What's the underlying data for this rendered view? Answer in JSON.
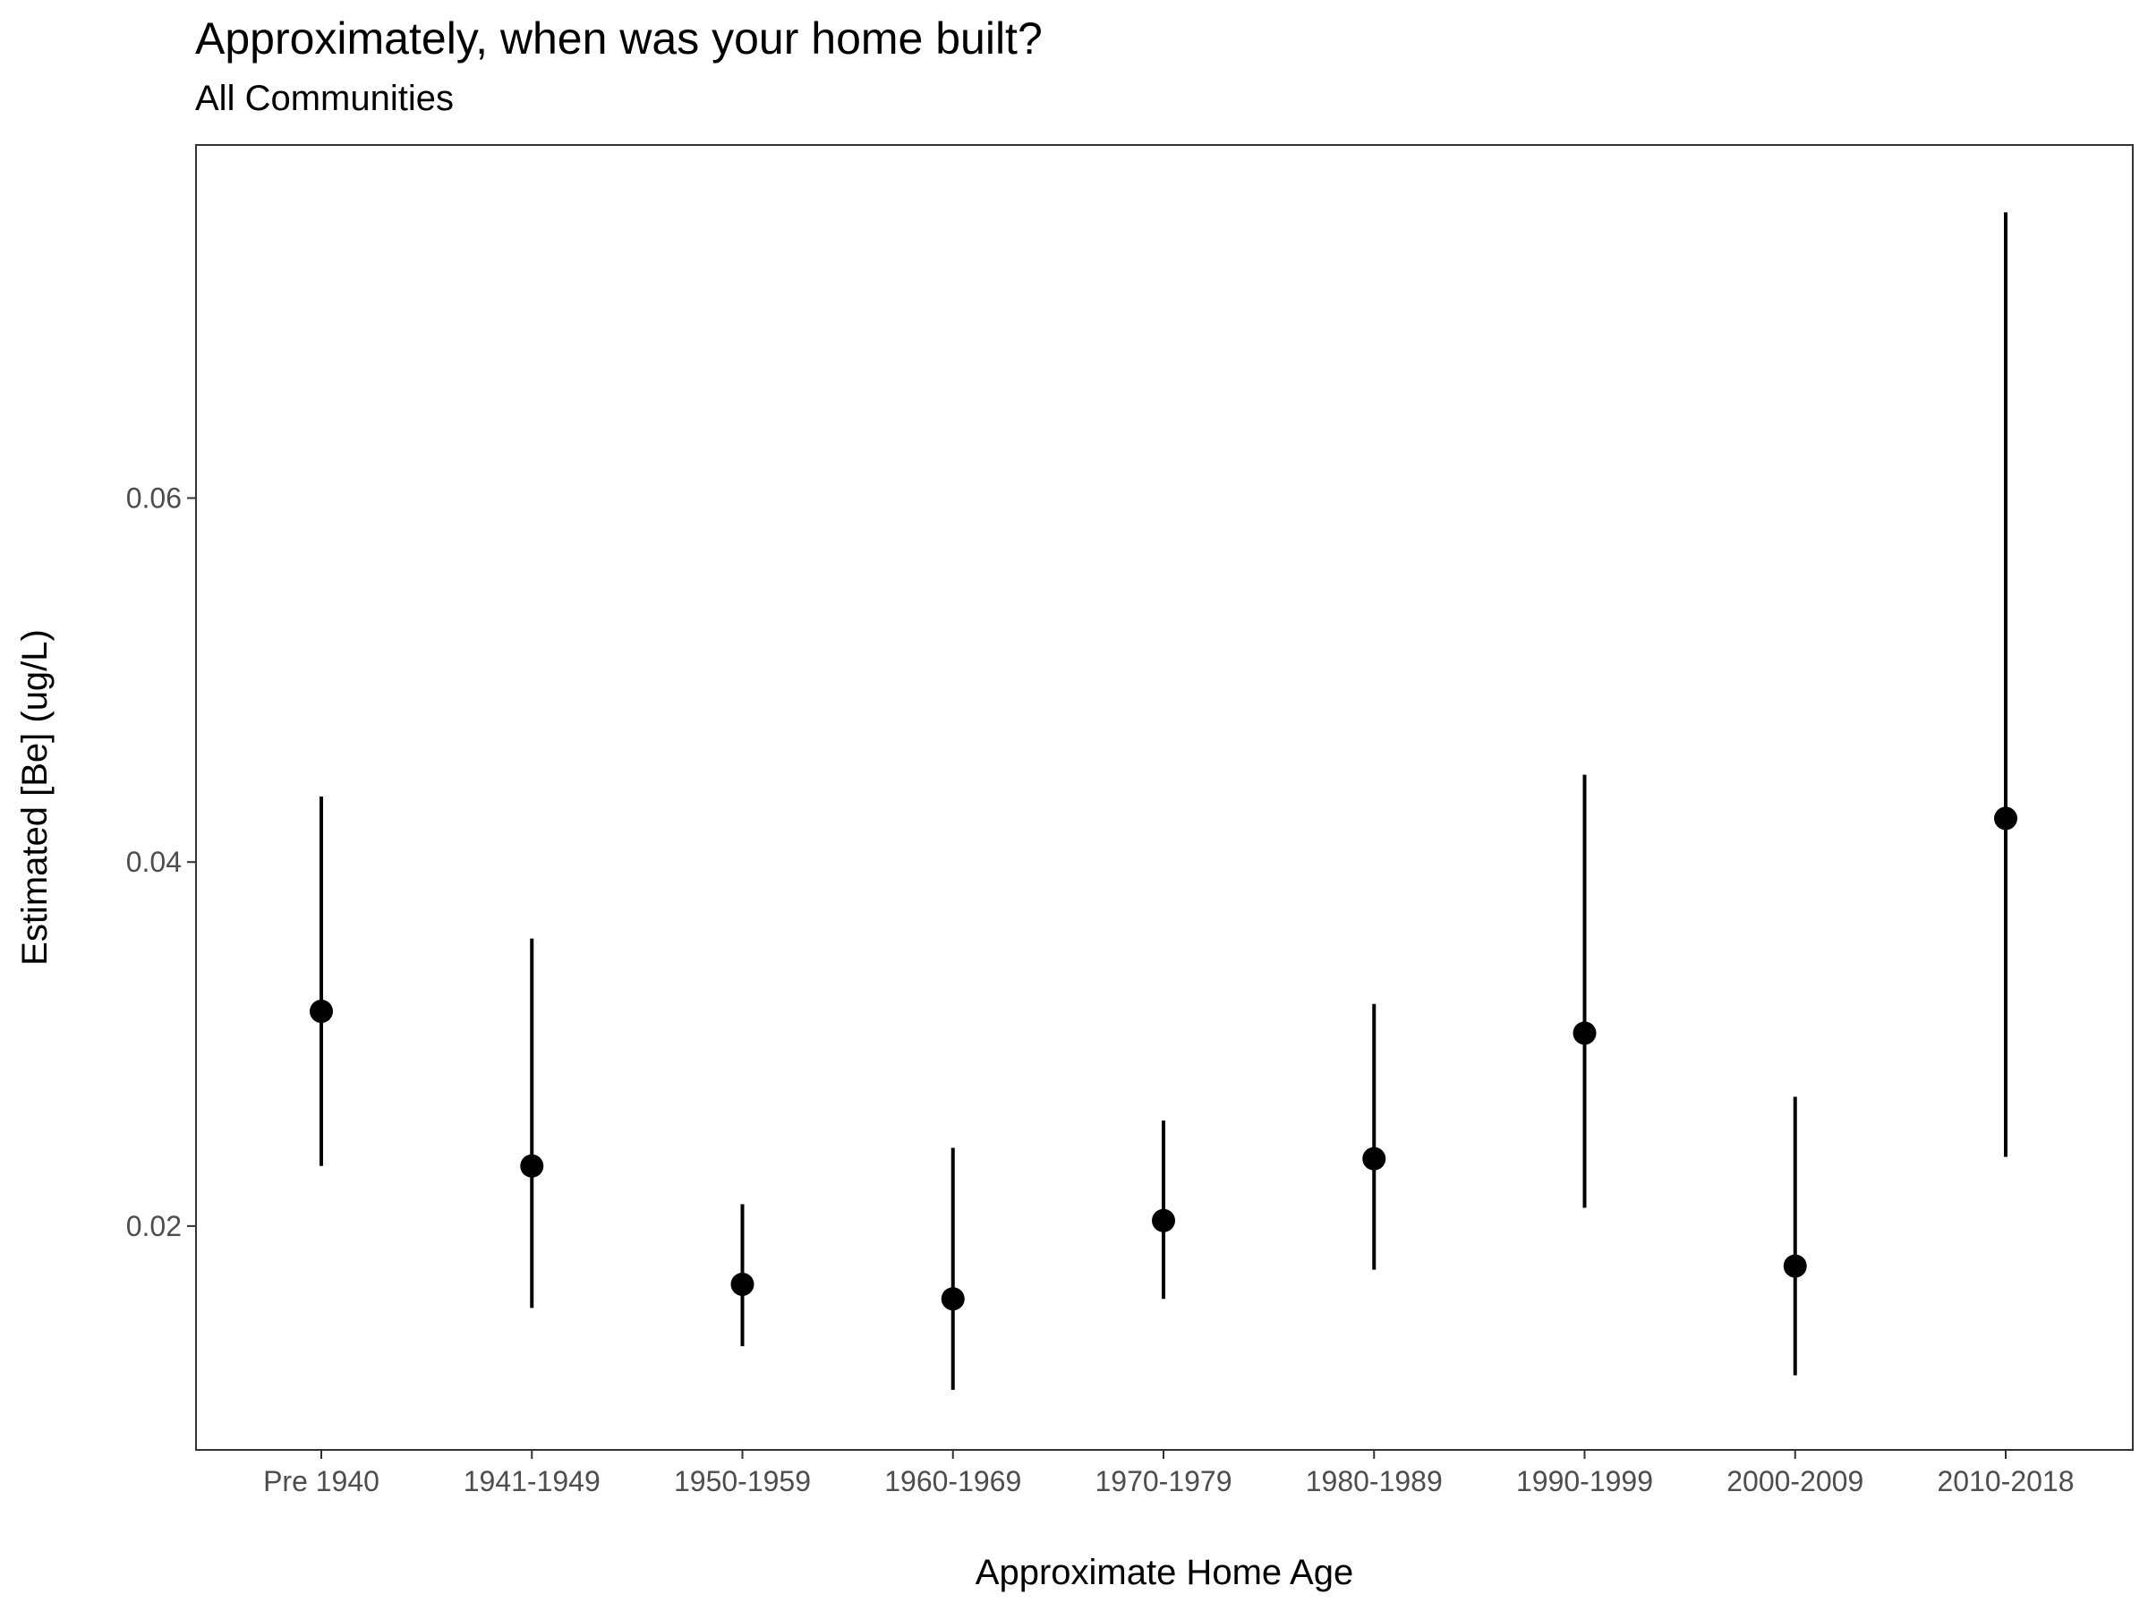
{
  "chart_data": {
    "type": "scatter",
    "title": "Approximately, when was your home built?",
    "subtitle": "All Communities",
    "xlabel": "Approximate Home Age",
    "ylabel": "Estimated [Be] (ug/L)",
    "categories": [
      "Pre 1940",
      "1941-1949",
      "1950-1959",
      "1960-1969",
      "1970-1979",
      "1980-1989",
      "1990-1999",
      "2000-2009",
      "2010-2018"
    ],
    "series": [
      {
        "values": [
          0.0318,
          0.0233,
          0.0168,
          0.016,
          0.0203,
          0.0237,
          0.0306,
          0.0178,
          0.0424
        ],
        "lower": [
          0.0233,
          0.0155,
          0.0134,
          0.011,
          0.016,
          0.0176,
          0.021,
          0.0118,
          0.0238
        ],
        "upper": [
          0.0436,
          0.0358,
          0.0212,
          0.0243,
          0.0258,
          0.0322,
          0.0448,
          0.0271,
          0.0757
        ]
      }
    ],
    "yticks": [
      0.02,
      0.04,
      0.06
    ],
    "ytick_labels": [
      "0.02",
      "0.04",
      "0.06"
    ],
    "ylim": [
      0.0077,
      0.0794
    ],
    "grid": false,
    "legend": "none",
    "colors": {
      "point": "#000000",
      "panel_border": "#333333",
      "tick_text": "#4d4d4d"
    }
  }
}
